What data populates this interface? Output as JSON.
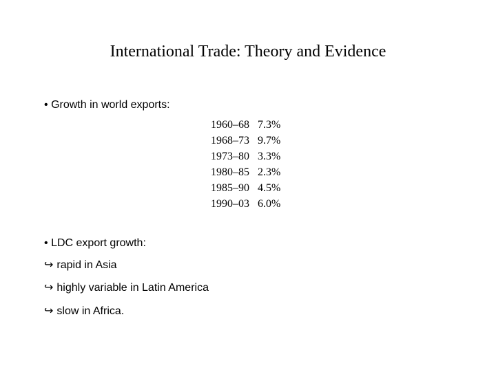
{
  "slide": {
    "title": "International Trade: Theory and Evidence",
    "section1": {
      "bullet": "•",
      "heading": "Growth in world exports:",
      "rows": [
        {
          "period": "1960–68",
          "growth": "7.3%"
        },
        {
          "period": "1968–73",
          "growth": "9.7%"
        },
        {
          "period": "1973–80",
          "growth": "3.3%"
        },
        {
          "period": "1980–85",
          "growth": "2.3%"
        },
        {
          "period": "1985–90",
          "growth": "4.5%"
        },
        {
          "period": "1990–03",
          "growth": "6.0%"
        }
      ]
    },
    "section2": {
      "bullet": "•",
      "heading": "LDC export growth:",
      "arrow": "↪",
      "items": [
        "rapid in Asia",
        "highly variable in Latin America",
        "slow in Africa."
      ]
    }
  }
}
